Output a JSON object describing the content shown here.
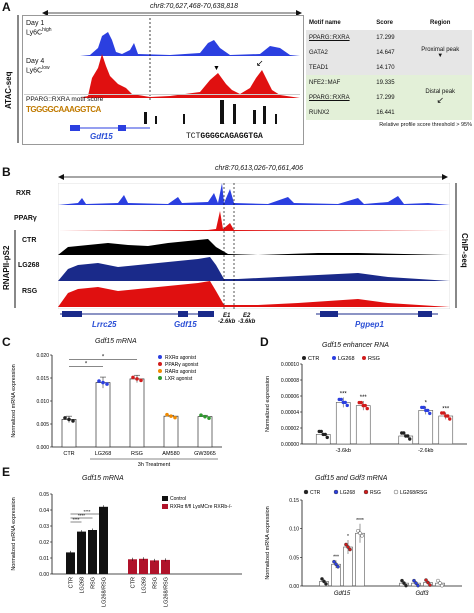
{
  "panelA": {
    "letter": "A",
    "coord": "chr8:70,627,468-70,638,818",
    "side_label": "ATAC-seq",
    "track1": {
      "line1": "Day 1",
      "line2_base": "Ly6C",
      "line2_sup": "high"
    },
    "track2": {
      "line1": "Day 4",
      "line2_base": "Ly6C",
      "line2_sup": "low"
    },
    "motif_label": "PPARG::RXRA motif score",
    "logo_text": "TGGGGCAAAGGTCA",
    "sequence_plain": "TCT",
    "sequence_bold": "GGGGCAGAGGTGA",
    "gene": "Gdf15",
    "table": {
      "headers": [
        "Motif name",
        "Score",
        "Region"
      ],
      "rows": [
        {
          "name": "PPARG::RXRA",
          "score": "17.299",
          "underline": true
        },
        {
          "name": "GATA2",
          "score": "14.647",
          "underline": false
        },
        {
          "name": "TEAD1",
          "score": "14.170",
          "underline": false
        },
        {
          "name": "NFE2::MAF",
          "score": "19.335",
          "underline": false
        },
        {
          "name": "PPARG::RXRA",
          "score": "17.299",
          "underline": true
        },
        {
          "name": "RUNX2",
          "score": "16.441",
          "underline": false
        }
      ],
      "region_proximal": "Proximal peak",
      "region_distal": "Distal peak",
      "arrow_down": "▼",
      "arrow_sw": "↙",
      "footnote": "Relative profile score threshold > 95%"
    },
    "colors": {
      "blue": "#2b3fe0",
      "red": "#e01010",
      "green_bg": "#e3f0d8",
      "grey_bg": "#e6e6e6"
    }
  },
  "panelB": {
    "letter": "B",
    "coord": "chr8:70,613,026-70,661,406",
    "tracks": [
      "RXR",
      "PPARγ",
      "CTR",
      "LG268",
      "RSG"
    ],
    "side_left": "RNAPII-pS2",
    "side_right": "ChIP-seq",
    "genes": [
      "Lrrc25",
      "Gdf15",
      "Pgpep1"
    ],
    "e1": "E1",
    "e1_dist": "-2.6kb",
    "e2": "E2",
    "e2_dist": "-3.6kb",
    "colors": {
      "blue": "#2b3fe0",
      "red": "#e01010",
      "black": "#000000",
      "navy": "#1a2a8a"
    }
  },
  "panelC": {
    "letter": "C",
    "title": "Gdf15 mRNA",
    "ylabel": "Normalized mRNA expression",
    "yticks": [
      "0.000",
      "0.005",
      "0.010",
      "0.015",
      "0.020"
    ],
    "xlabel": "3h Treatment",
    "legend": [
      {
        "label": "RXRα agonist",
        "color": "#2b3fe0"
      },
      {
        "label": "PPARγ agonist",
        "color": "#d11c1c"
      },
      {
        "label": "RARα agonist",
        "color": "#f08a00"
      },
      {
        "label": "LXR agonist",
        "color": "#2e9a2e"
      }
    ],
    "sig": [
      "*",
      "*"
    ],
    "chart_data": {
      "type": "bar",
      "categories": [
        "CTR",
        "LG268",
        "RSG",
        "AM580",
        "GW3965"
      ],
      "values": [
        0.006,
        0.014,
        0.0148,
        0.0067,
        0.0066
      ],
      "errors": [
        0.0007,
        0.0012,
        0.0008,
        0.0002,
        0.0003
      ],
      "colors": [
        "#222222",
        "#2b3fe0",
        "#d11c1c",
        "#f08a00",
        "#2e9a2e"
      ],
      "ylim": [
        0,
        0.02
      ],
      "ylabel": "Normalized mRNA expression",
      "xlabel": "3h Treatment"
    }
  },
  "panelD": {
    "letter": "D",
    "title": "Gdf15 enhancer RNA",
    "ylabel": "Normalized expression",
    "yticks": [
      "0.00000",
      "0.00002",
      "0.00004",
      "0.00006",
      "0.00008",
      "0.00010"
    ],
    "legend": [
      {
        "label": "CTR",
        "color": "#222222"
      },
      {
        "label": "LG268",
        "color": "#2b3fe0"
      },
      {
        "label": "RSG",
        "color": "#d11c1c"
      }
    ],
    "sig": [
      "***",
      "***",
      "*",
      "***"
    ],
    "chart_data": {
      "type": "bar",
      "categories": [
        "-3.6kb",
        "-2.6kb"
      ],
      "series": [
        {
          "name": "CTR",
          "values": [
            1.2e-05,
            1e-05
          ]
        },
        {
          "name": "LG268",
          "values": [
            5.2e-05,
            4.2e-05
          ]
        },
        {
          "name": "RSG",
          "values": [
            4.8e-05,
            3.5e-05
          ]
        }
      ],
      "ylim": [
        0,
        0.0001
      ],
      "ylabel": "Normalized expression"
    }
  },
  "panelE": {
    "letter": "E",
    "left": {
      "title": "Gdf15 mRNA",
      "ylabel": "Normalized mRNA expression",
      "yticks": [
        "0.00",
        "0.01",
        "0.02",
        "0.03",
        "0.04",
        "0.05"
      ],
      "legend": [
        {
          "label": "Control",
          "color": "#111111"
        },
        {
          "label": "RXRα fl/fl LysMCre RXRb-/-",
          "color": "#b0122a"
        }
      ],
      "sig": [
        "****",
        "****",
        "****"
      ],
      "chart_data": {
        "type": "bar",
        "categories": [
          "CTR",
          "LG268",
          "RSG",
          "LG268/RSG"
        ],
        "series": [
          {
            "name": "Control",
            "values": [
              0.0135,
              0.0265,
              0.0275,
              0.042
            ]
          },
          {
            "name": "RXRα fl/fl LysMCre RXRb-/-",
            "values": [
              0.0092,
              0.0095,
              0.0085,
              0.0088
            ]
          }
        ],
        "ylim": [
          0,
          0.05
        ],
        "ylabel": "Normalized mRNA expression"
      }
    },
    "right": {
      "title": "Gdf15 and Gdf3 mRNA",
      "ylabel": "Normalized mRNA expression",
      "yticks": [
        "0.00",
        "0.05",
        "0.10",
        "0.15"
      ],
      "legend": [
        {
          "label": "CTR",
          "color": "#222222"
        },
        {
          "label": "LG268",
          "color": "#2b3fe0"
        },
        {
          "label": "RSG",
          "color": "#d11c1c"
        },
        {
          "label": "LG268/RSG",
          "color": "#ffffff"
        }
      ],
      "sig": [
        "***",
        "*",
        "****"
      ],
      "chart_data": {
        "type": "bar",
        "categories": [
          "Gdf15",
          "Gdf3"
        ],
        "series": [
          {
            "name": "CTR",
            "values": [
              0.008,
              0.005
            ]
          },
          {
            "name": "LG268",
            "values": [
              0.038,
              0.005
            ]
          },
          {
            "name": "RSG",
            "values": [
              0.068,
              0.006
            ]
          },
          {
            "name": "LG268/RSG",
            "values": [
              0.092,
              0.005
            ]
          }
        ],
        "ylim": [
          0,
          0.15
        ],
        "ylabel": "Normalized mRNA expression"
      }
    }
  }
}
